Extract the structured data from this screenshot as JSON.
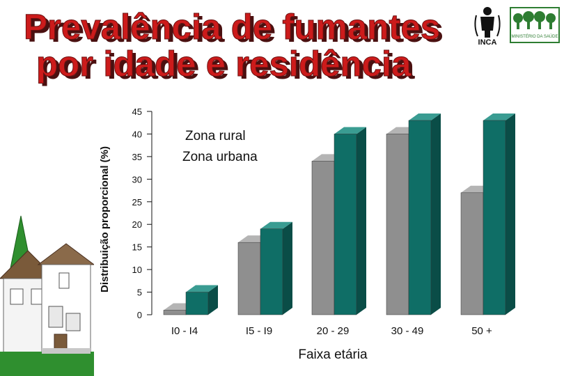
{
  "title": {
    "line1": "Prevalência de fumantes",
    "line2": "por idade e residência"
  },
  "logos": {
    "inca_text": "INCA",
    "ministry_text": "MINISTÉRIO DA SAÚDE"
  },
  "colors": {
    "title_fill": "#cc1b1b",
    "title_shadow": "#4a1010",
    "rural": "#0f6e66",
    "urbana": "#8f8f8f",
    "house_wall": "#ffffff",
    "tree": "#2f8f2f"
  },
  "chart_data": {
    "type": "bar",
    "categories": [
      "I0 - I4",
      "I5 - I9",
      "20 - 29",
      "30 - 49",
      "50 +"
    ],
    "series": [
      {
        "name": "Zona rural",
        "values": [
          5,
          19,
          40,
          43,
          43
        ]
      },
      {
        "name": "Zona urbana",
        "values": [
          1,
          16,
          34,
          40,
          27
        ]
      }
    ],
    "xlabel": "Faixa etária",
    "ylabel": "Distribuição proporcional (%)",
    "yticks": [
      0,
      5,
      10,
      15,
      20,
      25,
      30,
      35,
      40,
      45
    ],
    "ylim": [
      0,
      45
    ],
    "legend": [
      "Zona rural",
      "Zona urbana"
    ],
    "legend_position": "top-left"
  }
}
